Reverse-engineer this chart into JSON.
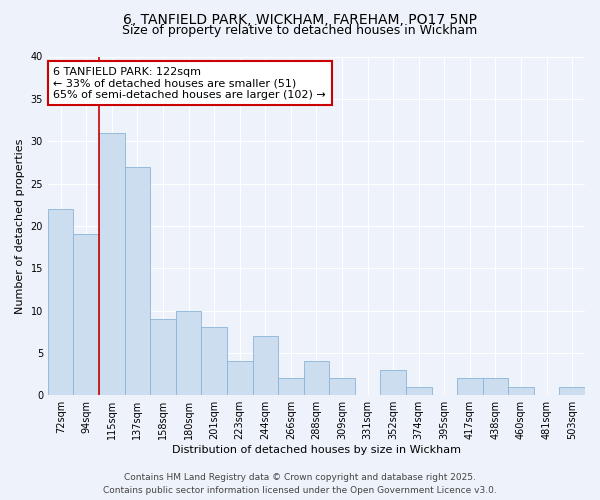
{
  "title": "6, TANFIELD PARK, WICKHAM, FAREHAM, PO17 5NP",
  "subtitle": "Size of property relative to detached houses in Wickham",
  "xlabel": "Distribution of detached houses by size in Wickham",
  "ylabel": "Number of detached properties",
  "bar_color": "#ccddf0",
  "bar_edge_color": "#8ab4d8",
  "background_color": "#eef2fa",
  "grid_color": "#ffffff",
  "categories": [
    "72sqm",
    "94sqm",
    "115sqm",
    "137sqm",
    "158sqm",
    "180sqm",
    "201sqm",
    "223sqm",
    "244sqm",
    "266sqm",
    "288sqm",
    "309sqm",
    "331sqm",
    "352sqm",
    "374sqm",
    "395sqm",
    "417sqm",
    "438sqm",
    "460sqm",
    "481sqm",
    "503sqm"
  ],
  "values": [
    22,
    19,
    31,
    27,
    9,
    10,
    8,
    4,
    7,
    2,
    4,
    2,
    0,
    3,
    1,
    0,
    2,
    2,
    1,
    0,
    1
  ],
  "red_line_index": 2,
  "annotation_line1": "6 TANFIELD PARK: 122sqm",
  "annotation_line2": "← 33% of detached houses are smaller (51)",
  "annotation_line3": "65% of semi-detached houses are larger (102) →",
  "annotation_box_color": "#ffffff",
  "annotation_box_edge": "#cc0000",
  "red_line_color": "#cc0000",
  "ylim": [
    0,
    40
  ],
  "yticks": [
    0,
    5,
    10,
    15,
    20,
    25,
    30,
    35,
    40
  ],
  "footer_line1": "Contains HM Land Registry data © Crown copyright and database right 2025.",
  "footer_line2": "Contains public sector information licensed under the Open Government Licence v3.0.",
  "title_fontsize": 10,
  "subtitle_fontsize": 9,
  "axis_label_fontsize": 8,
  "tick_fontsize": 7,
  "annotation_fontsize": 8,
  "footer_fontsize": 6.5
}
